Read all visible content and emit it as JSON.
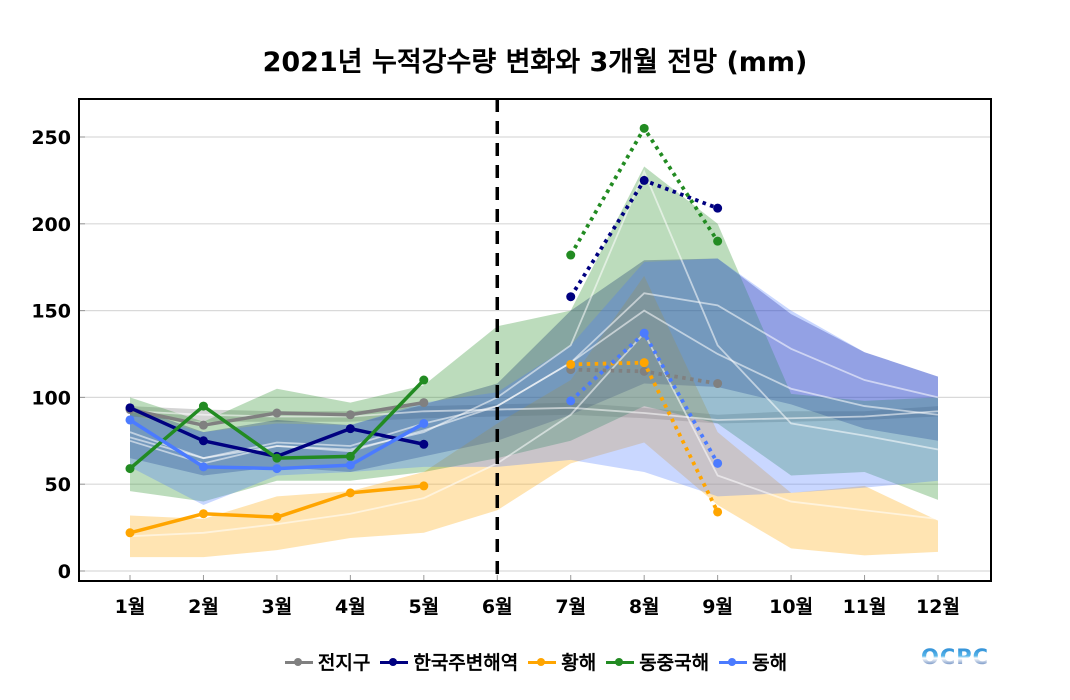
{
  "chart_data": {
    "type": "line",
    "title": "2021년 누적강수량 변화와 3개월 전망 (mm)",
    "xlabel": "",
    "ylabel": "",
    "categories": [
      "1월",
      "2월",
      "3월",
      "4월",
      "5월",
      "6월",
      "7월",
      "8월",
      "9월",
      "10월",
      "11월",
      "12월"
    ],
    "yticks": [
      0,
      50,
      100,
      150,
      200,
      250
    ],
    "ylim": [
      -6,
      272
    ],
    "grid": true,
    "legend_position": "bottom-center",
    "divider_month": "6월",
    "series": [
      {
        "name": "전지구",
        "color": "#808080",
        "observed": [
          93,
          84,
          91,
          90,
          97,
          null,
          null,
          null,
          null,
          null,
          null,
          null
        ],
        "forecast": [
          null,
          null,
          null,
          null,
          null,
          null,
          116,
          115,
          108,
          null,
          null,
          null
        ]
      },
      {
        "name": "한국주변해역",
        "color": "#000080",
        "observed": [
          94,
          75,
          66,
          82,
          73,
          null,
          null,
          null,
          null,
          null,
          null,
          null
        ],
        "forecast": [
          null,
          null,
          null,
          null,
          null,
          null,
          158,
          225,
          209,
          null,
          null,
          null
        ]
      },
      {
        "name": "황해",
        "color": "#FFA500",
        "observed": [
          22,
          33,
          31,
          45,
          49,
          null,
          null,
          null,
          null,
          null,
          null,
          null
        ],
        "forecast": [
          null,
          null,
          null,
          null,
          null,
          null,
          119,
          120,
          34,
          null,
          null,
          null
        ]
      },
      {
        "name": "동중국해",
        "color": "#228B22",
        "observed": [
          59,
          95,
          65,
          66,
          110,
          null,
          null,
          null,
          null,
          null,
          null,
          null
        ],
        "forecast": [
          null,
          null,
          null,
          null,
          null,
          null,
          182,
          255,
          190,
          null,
          null,
          null
        ]
      },
      {
        "name": "동해",
        "color": "#4B7BFF",
        "observed": [
          87,
          60,
          59,
          61,
          85,
          null,
          null,
          null,
          null,
          null,
          null,
          null
        ],
        "forecast": [
          null,
          null,
          null,
          null,
          null,
          null,
          98,
          137,
          62,
          null,
          null,
          null
        ]
      }
    ],
    "climatology_bands": [
      {
        "name": "전지구",
        "color": "#B0B0B0",
        "mean": [
          92,
          90,
          89,
          89,
          92,
          93,
          94,
          91,
          87,
          88,
          89,
          92
        ],
        "lower": [
          89,
          86,
          86,
          86,
          88,
          89,
          90,
          88,
          85,
          86,
          87,
          89
        ],
        "upper": [
          95,
          93,
          92,
          92,
          95,
          96,
          97,
          94,
          90,
          92,
          92,
          95
        ]
      },
      {
        "name": "한국주변해역",
        "color": "#000080",
        "mean": [
          80,
          65,
          72,
          69,
          81,
          95,
          120,
          160,
          153,
          128,
          110,
          100
        ],
        "lower": [
          65,
          55,
          60,
          57,
          66,
          75,
          90,
          108,
          106,
          96,
          82,
          75
        ],
        "upper": [
          95,
          80,
          87,
          84,
          96,
          108,
          150,
          179,
          180,
          148,
          126,
          112
        ]
      },
      {
        "name": "황해",
        "color": "#FFA500",
        "mean": [
          20,
          22,
          27,
          33,
          42,
          62,
          90,
          137,
          55,
          40,
          35,
          30
        ],
        "lower": [
          8,
          8,
          12,
          19,
          22,
          35,
          62,
          74,
          38,
          13,
          9,
          11
        ],
        "upper": [
          32,
          30,
          43,
          46,
          57,
          85,
          110,
          170,
          80,
          45,
          49,
          29
        ]
      },
      {
        "name": "동중국해",
        "color": "#228B22",
        "mean": [
          75,
          62,
          72,
          70,
          80,
          100,
          130,
          230,
          130,
          85,
          78,
          70
        ],
        "lower": [
          46,
          40,
          52,
          52,
          57,
          65,
          75,
          95,
          85,
          55,
          57,
          41
        ],
        "upper": [
          100,
          86,
          105,
          97,
          107,
          141,
          150,
          233,
          200,
          102,
          98,
          100
        ]
      },
      {
        "name": "동해",
        "color": "#4B7BFF",
        "mean": [
          77,
          65,
          74,
          72,
          85,
          95,
          120,
          150,
          125,
          105,
          95,
          90
        ],
        "lower": [
          60,
          38,
          55,
          57,
          60,
          60,
          64,
          57,
          43,
          45,
          48,
          52
        ],
        "upper": [
          90,
          80,
          85,
          84,
          97,
          103,
          130,
          178,
          180,
          150,
          126,
          112
        ]
      }
    ]
  },
  "legend": {
    "items": [
      {
        "label": "전지구",
        "color": "#808080"
      },
      {
        "label": "한국주변해역",
        "color": "#000080"
      },
      {
        "label": "황해",
        "color": "#FFA500"
      },
      {
        "label": "동중국해",
        "color": "#228B22"
      },
      {
        "label": "동해",
        "color": "#4B7BFF"
      }
    ]
  },
  "logo": {
    "text": "OCPC"
  }
}
